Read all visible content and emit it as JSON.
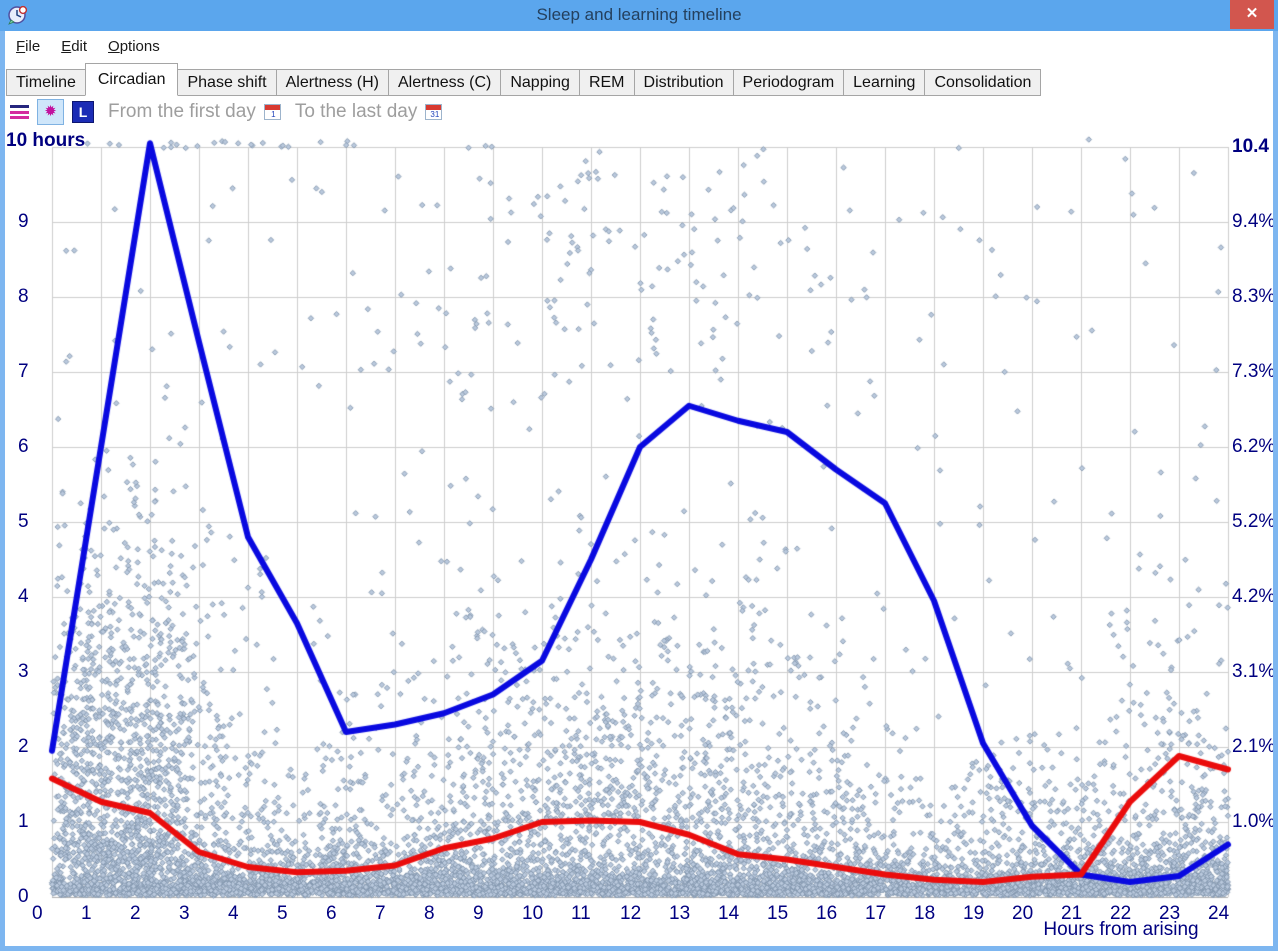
{
  "window": {
    "title": "Sleep and learning timeline"
  },
  "menu": {
    "items": [
      {
        "label": "File"
      },
      {
        "label": "Edit"
      },
      {
        "label": "Options"
      }
    ]
  },
  "tabs": {
    "active": "Circadian",
    "items": [
      "Timeline",
      "Circadian",
      "Phase shift",
      "Alertness (H)",
      "Alertness (C)",
      "Napping",
      "REM",
      "Distribution",
      "Periodogram",
      "Learning",
      "Consolidation"
    ]
  },
  "toolbar": {
    "from_label": "From the first day",
    "to_label": "To the last day",
    "l_button_label": "L",
    "star_glyph": "✹",
    "cal_from_num": "1",
    "cal_to_num": "31"
  },
  "chart_data": {
    "type": "scatter",
    "x_axis": {
      "title": "Hours from arising",
      "min": 0,
      "max": 24,
      "ticks": [
        "0",
        "1",
        "2",
        "3",
        "4",
        "5",
        "6",
        "7",
        "8",
        "9",
        "10",
        "11",
        "12",
        "13",
        "14",
        "15",
        "16",
        "17",
        "18",
        "19",
        "20",
        "21",
        "22",
        "23",
        "24"
      ]
    },
    "y_axis_left": {
      "title": "10 hours",
      "min": 0,
      "max": 10,
      "ticks": [
        {
          "value": 9,
          "label": "9"
        },
        {
          "value": 8,
          "label": "8"
        },
        {
          "value": 7,
          "label": "7"
        },
        {
          "value": 6,
          "label": "6"
        },
        {
          "value": 5,
          "label": "5"
        },
        {
          "value": 4,
          "label": "4"
        },
        {
          "value": 3,
          "label": "3"
        },
        {
          "value": 2,
          "label": "2"
        },
        {
          "value": 1,
          "label": "1"
        },
        {
          "value": 0,
          "label": "0"
        }
      ]
    },
    "y_axis_right": {
      "ticks": [
        {
          "value": 10,
          "label": "10.4",
          "bold": true
        },
        {
          "value": 9,
          "label": "9.4%"
        },
        {
          "value": 8,
          "label": "8.3%"
        },
        {
          "value": 7,
          "label": "7.3%"
        },
        {
          "value": 6,
          "label": "6.2%"
        },
        {
          "value": 5,
          "label": "5.2%"
        },
        {
          "value": 4,
          "label": "4.2%"
        },
        {
          "value": 3,
          "label": "3.1%"
        },
        {
          "value": 2,
          "label": "2.1%"
        },
        {
          "value": 1,
          "label": "1.0%"
        }
      ]
    },
    "grid": true,
    "series": [
      {
        "name": "blue-line",
        "color": "#0909e0",
        "width": 6,
        "x": [
          0,
          1,
          2,
          3,
          4,
          5,
          6,
          7,
          8,
          9,
          10,
          11,
          12,
          13,
          14,
          15,
          16,
          17,
          18,
          19,
          20,
          21,
          22,
          23,
          24
        ],
        "values": [
          1.95,
          6.0,
          10.05,
          7.4,
          4.8,
          3.65,
          2.2,
          2.3,
          2.45,
          2.7,
          3.15,
          4.5,
          6.0,
          6.55,
          6.35,
          6.2,
          5.7,
          5.25,
          3.95,
          2.05,
          0.95,
          0.3,
          0.2,
          0.28,
          0.7
        ]
      },
      {
        "name": "red-line",
        "color": "#ea0c0c",
        "width": 6,
        "x": [
          0,
          1,
          2,
          3,
          4,
          5,
          6,
          7,
          8,
          9,
          10,
          11,
          12,
          13,
          14,
          15,
          16,
          17,
          18,
          19,
          20,
          21,
          22,
          23,
          24
        ],
        "values": [
          1.58,
          1.27,
          1.12,
          0.6,
          0.4,
          0.33,
          0.35,
          0.42,
          0.65,
          0.78,
          1.0,
          1.02,
          1.0,
          0.83,
          0.57,
          0.5,
          0.4,
          0.3,
          0.23,
          0.2,
          0.27,
          0.3,
          1.27,
          1.88,
          1.7
        ]
      }
    ],
    "scatter": {
      "point_fill": "#bac9dd",
      "point_stroke": "#8094ab",
      "seed": 1234,
      "clusters": [
        {
          "count": 3000,
          "x": {
            "dist": "uniform",
            "min": 0,
            "max": 24
          },
          "y": {
            "dist": "halfnormal",
            "base": 0.02,
            "sigma": 0.13,
            "max": 0.45
          }
        },
        {
          "count": 3800,
          "x": {
            "dist": "uniform",
            "min": 0,
            "max": 24
          },
          "y": {
            "dist": "halfnormal",
            "base": 0.03,
            "sigma": 0.4,
            "max": 1.35
          }
        },
        {
          "count": 420,
          "x": {
            "dist": "uniform",
            "min": 3.5,
            "max": 24
          },
          "y": {
            "dist": "halfnormal",
            "base": 1.0,
            "sigma": 0.55,
            "max": 2.7
          }
        },
        {
          "count": 260,
          "x": {
            "dist": "uniform",
            "min": 0.03,
            "max": 1.25
          },
          "y": {
            "dist": "halfnormal",
            "base": 0.5,
            "sigma": 1.9,
            "max": 7.0
          }
        },
        {
          "count": 950,
          "x": {
            "dist": "gauss",
            "mean": 1.8,
            "sigma": 0.95,
            "min": 0.1,
            "max": 4.6
          },
          "y": {
            "dist": "halfnormal",
            "base": 0.45,
            "sigma": 2.0,
            "max": 7.8
          }
        },
        {
          "count": 820,
          "x": {
            "dist": "gauss",
            "mean": 11.8,
            "sigma": 2.7,
            "min": 5.6,
            "max": 17.6
          },
          "y": {
            "dist": "halfnormal",
            "base": 0.7,
            "sigma": 1.75,
            "max": 7.2
          }
        },
        {
          "count": 130,
          "x": {
            "dist": "gauss",
            "mean": 10.8,
            "sigma": 3.2,
            "min": 4.8,
            "max": 17.9
          },
          "y": {
            "dist": "uniform",
            "min": 6.6,
            "max": 9.7
          }
        },
        {
          "count": 210,
          "x": {
            "dist": "gauss",
            "mean": 23.1,
            "sigma": 1.2,
            "min": 18.6,
            "max": 24
          },
          "y": {
            "dist": "halfnormal",
            "base": 0.15,
            "sigma": 1.8,
            "max": 6.3
          }
        },
        {
          "count": 260,
          "x": {
            "dist": "uniform",
            "min": 0,
            "max": 24
          },
          "y": {
            "dist": "uniform",
            "min": 0.25,
            "max": 10.1
          }
        },
        {
          "count": 22,
          "x": {
            "dist": "gauss",
            "mean": 2.3,
            "sigma": 2.2,
            "min": 0.15,
            "max": 23.9
          },
          "y": {
            "dist": "uniform",
            "min": 9.98,
            "max": 10.08
          }
        }
      ]
    }
  },
  "colors": {
    "titlebar": "#5ba6ed",
    "window_border": "#7db6f0",
    "close_button": "#d2564e",
    "axis_text": "#000080",
    "gridline": "#cdcdcd",
    "toolbar_text": "#9e9e9e"
  }
}
